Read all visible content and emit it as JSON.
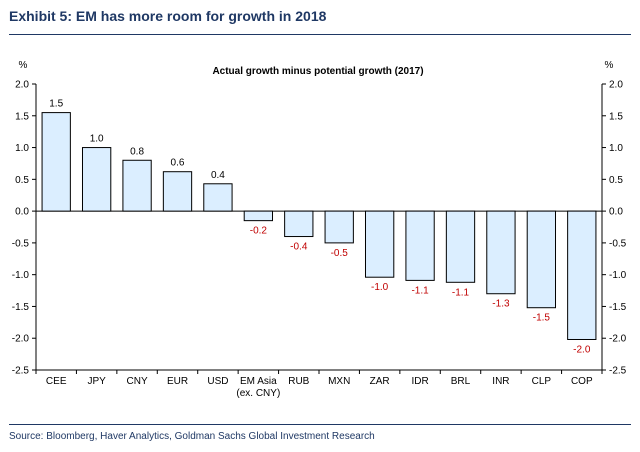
{
  "header": {
    "title": "Exhibit 5: EM has more room for growth in 2018"
  },
  "footer": {
    "source": "Source: Bloomberg, Haver Analytics, Goldman Sachs Global Investment Research"
  },
  "chart_data": {
    "type": "bar",
    "title": "Actual growth minus potential growth (2017)",
    "ylabel_left": "%",
    "ylabel_right": "%",
    "ylim": [
      -2.5,
      2.0
    ],
    "yticks": [
      "2.0",
      "1.5",
      "1.0",
      "0.5",
      "0.0",
      "-0.5",
      "-1.0",
      "-1.5",
      "-2.0",
      "-2.5"
    ],
    "ytick_values": [
      2.0,
      1.5,
      1.0,
      0.5,
      0.0,
      -0.5,
      -1.0,
      -1.5,
      -2.0,
      -2.5
    ],
    "grid": false,
    "categories": [
      "CEE",
      "JPY",
      "CNY",
      "EUR",
      "USD",
      "EM Asia",
      "RUB",
      "MXN",
      "ZAR",
      "IDR",
      "BRL",
      "INR",
      "CLP",
      "COP"
    ],
    "category_sublabels": [
      "",
      "",
      "",
      "",
      "",
      "(ex. CNY)",
      "",
      "",
      "",
      "",
      "",
      "",
      "",
      ""
    ],
    "values": [
      1.55,
      1.0,
      0.8,
      0.62,
      0.43,
      -0.15,
      -0.4,
      -0.5,
      -1.04,
      -1.09,
      -1.12,
      -1.3,
      -1.52,
      -2.02
    ],
    "data_labels": [
      "1.5",
      "1.0",
      "0.8",
      "0.6",
      "0.4",
      "-0.2",
      "-0.4",
      "-0.5",
      "-1.0",
      "-1.1",
      "-1.1",
      "-1.3",
      "-1.5",
      "-2.0"
    ],
    "colors": {
      "bar_fill": "#dbeeff",
      "bar_stroke": "#000000",
      "positive_label": "#000000",
      "negative_label": "#c00000"
    }
  }
}
